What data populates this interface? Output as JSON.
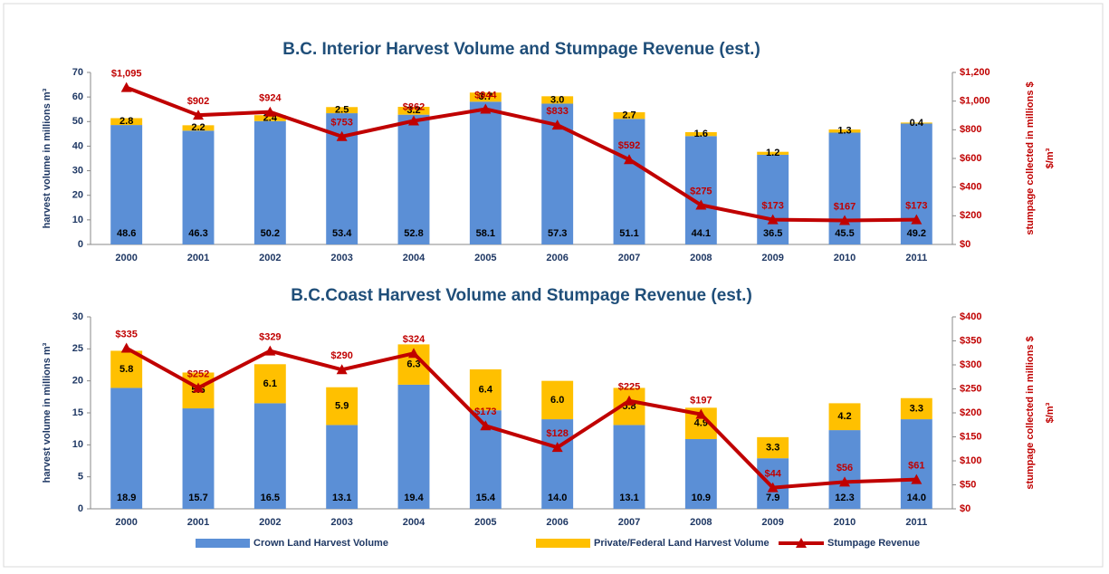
{
  "chart_data": [
    {
      "type": "bar_line",
      "title": "B.C. Interior Harvest Volume and Stumpage Revenue (est.)",
      "ylabel": "harvest volume in millions m³",
      "y2label": "stumpage collected in millions $",
      "y2unit": "$/m³",
      "categories": [
        "2000",
        "2001",
        "2002",
        "2003",
        "2004",
        "2005",
        "2006",
        "2007",
        "2008",
        "2009",
        "2010",
        "2011"
      ],
      "series": [
        {
          "name": "Crown Land Harvest Volume",
          "color": "#5b8fd6",
          "values": [
            48.6,
            46.3,
            50.2,
            53.4,
            52.8,
            58.1,
            57.3,
            51.1,
            44.1,
            36.5,
            45.5,
            49.2
          ],
          "value_labels": [
            "48.6",
            "46.3",
            "50.2",
            "53.4",
            "52.8",
            "58.1",
            "57.3",
            "51.1",
            "44.1",
            "36.5",
            "45.5",
            "49.2"
          ]
        },
        {
          "name": "Private/Federal Land Harvest Volume",
          "color": "#ffc000",
          "values": [
            2.8,
            2.2,
            2.4,
            2.5,
            3.2,
            3.7,
            3.0,
            2.7,
            1.6,
            1.2,
            1.3,
            0.4
          ],
          "value_labels": [
            "2.8",
            "2.2",
            "2.4",
            "2.5",
            "3.2",
            "3.7",
            "3.0",
            "2.7",
            "1.6",
            "1.2",
            "1.3",
            "0.4"
          ]
        },
        {
          "name": "Stumpage Revenue",
          "color": "#c00000",
          "axis": "y2",
          "values": [
            1095,
            902,
            924,
            753,
            862,
            944,
            833,
            592,
            275,
            173,
            167,
            173
          ],
          "value_labels": [
            "$1,095",
            "$902",
            "$924",
            "$753",
            "$862",
            "$944",
            "$833",
            "$592",
            "$275",
            "$173",
            "$167",
            "$173"
          ]
        }
      ],
      "ylim": [
        0,
        70
      ],
      "yticks": [
        0,
        10,
        20,
        30,
        40,
        50,
        60,
        70
      ],
      "y2lim": [
        0,
        1200
      ],
      "y2ticks": [
        {
          "value": 0,
          "label": "$0"
        },
        {
          "value": 200,
          "label": "$200"
        },
        {
          "value": 400,
          "label": "$400"
        },
        {
          "value": 600,
          "label": "$600"
        },
        {
          "value": 800,
          "label": "$800"
        },
        {
          "value": 1000,
          "label": "$1,000"
        },
        {
          "value": 1200,
          "label": "$1,200"
        }
      ]
    },
    {
      "type": "bar_line",
      "title": "B.C.Coast Harvest Volume and Stumpage Revenue (est.)",
      "ylabel": "harvest volume in millions m³",
      "y2label": "stumpage collected in millions $",
      "y2unit": "$/m³",
      "categories": [
        "2000",
        "2001",
        "2002",
        "2003",
        "2004",
        "2005",
        "2006",
        "2007",
        "2008",
        "2009",
        "2010",
        "2011"
      ],
      "series": [
        {
          "name": "Crown Land Harvest Volume",
          "color": "#5b8fd6",
          "values": [
            18.9,
            15.7,
            16.5,
            13.1,
            19.4,
            15.4,
            14.0,
            13.1,
            10.9,
            7.9,
            12.3,
            14.0
          ],
          "value_labels": [
            "18.9",
            "15.7",
            "16.5",
            "13.1",
            "19.4",
            "15.4",
            "14.0",
            "13.1",
            "10.9",
            "7.9",
            "12.3",
            "14.0"
          ]
        },
        {
          "name": "Private/Federal Land Harvest Volume",
          "color": "#ffc000",
          "values": [
            5.8,
            5.6,
            6.1,
            5.9,
            6.3,
            6.4,
            6.0,
            5.8,
            4.9,
            3.3,
            4.2,
            3.3
          ],
          "value_labels": [
            "5.8",
            "5.6",
            "6.1",
            "5.9",
            "6.3",
            "6.4",
            "6.0",
            "5.8",
            "4.9",
            "3.3",
            "4.2",
            "3.3"
          ]
        },
        {
          "name": "Stumpage Revenue",
          "color": "#c00000",
          "axis": "y2",
          "values": [
            335,
            252,
            329,
            290,
            324,
            173,
            128,
            225,
            197,
            44,
            56,
            61
          ],
          "value_labels": [
            "$335",
            "$252",
            "$329",
            "$290",
            "$324",
            "$173",
            "$128",
            "$225",
            "$197",
            "$44",
            "$56",
            "$61"
          ]
        }
      ],
      "ylim": [
        0,
        30
      ],
      "yticks": [
        0,
        5,
        10,
        15,
        20,
        25,
        30
      ],
      "y2lim": [
        0,
        400
      ],
      "y2ticks": [
        {
          "value": 0,
          "label": "$0"
        },
        {
          "value": 50,
          "label": "$50"
        },
        {
          "value": 100,
          "label": "$100"
        },
        {
          "value": 150,
          "label": "$150"
        },
        {
          "value": 200,
          "label": "$200"
        },
        {
          "value": 250,
          "label": "$250"
        },
        {
          "value": 300,
          "label": "$300"
        },
        {
          "value": 350,
          "label": "$350"
        },
        {
          "value": 400,
          "label": "$400"
        }
      ]
    }
  ]
}
